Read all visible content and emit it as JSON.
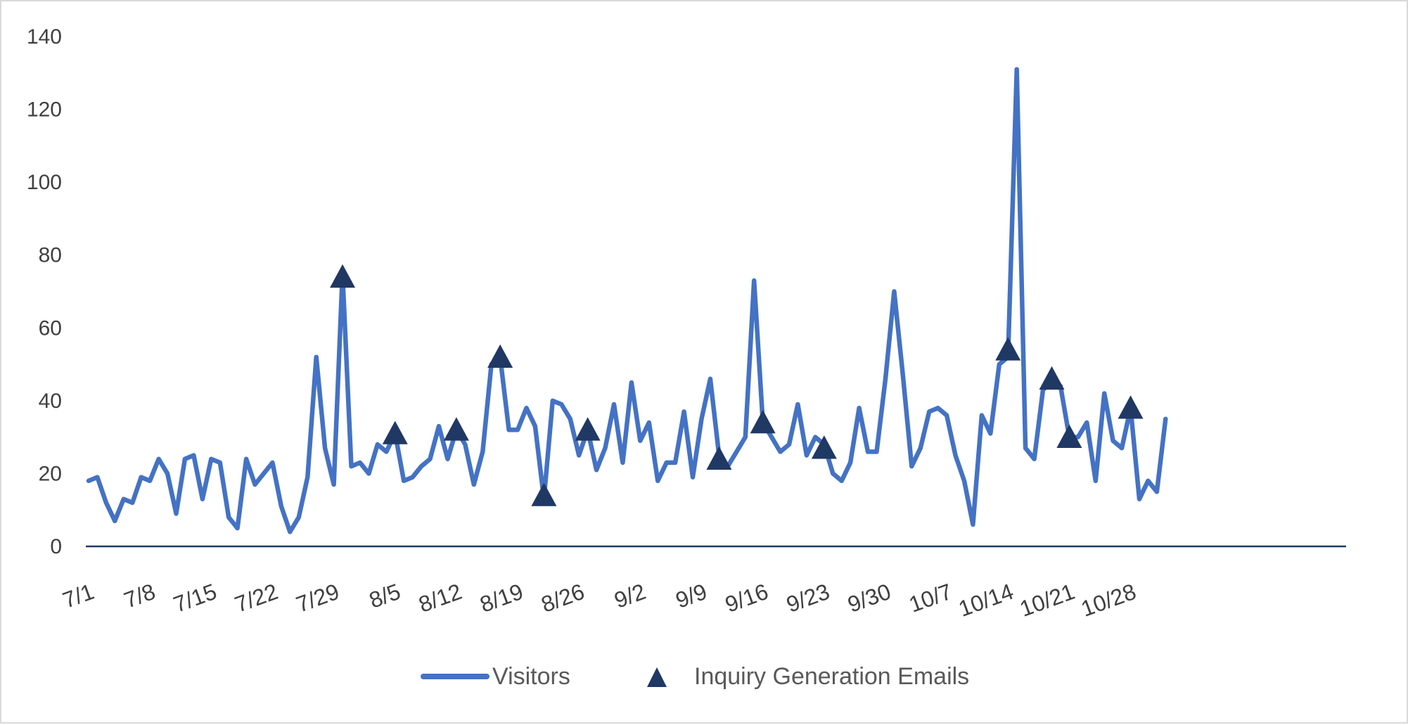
{
  "chart_data": {
    "type": "line",
    "x_tick_labels": [
      "7/1",
      "7/8",
      "7/15",
      "7/22",
      "7/29",
      "8/5",
      "8/12",
      "8/19",
      "8/26",
      "9/2",
      "9/9",
      "9/16",
      "9/23",
      "9/30",
      "10/7",
      "10/14",
      "10/21",
      "10/28"
    ],
    "y_tick_labels": [
      "0",
      "20",
      "40",
      "60",
      "80",
      "100",
      "120",
      "140"
    ],
    "ylim": [
      0,
      140
    ],
    "x_range_days": [
      0,
      124
    ],
    "series": [
      {
        "name": "Visitors",
        "kind": "line",
        "color": "#4472c4",
        "values": [
          18,
          19,
          12,
          7,
          13,
          12,
          19,
          18,
          24,
          20,
          9,
          24,
          25,
          13,
          24,
          23,
          8,
          5,
          24,
          17,
          20,
          23,
          11,
          4,
          8,
          19,
          52,
          27,
          17,
          75,
          22,
          23,
          20,
          28,
          26,
          31,
          18,
          19,
          22,
          24,
          33,
          24,
          32,
          28,
          17,
          26,
          50,
          52,
          32,
          32,
          38,
          33,
          13,
          40,
          39,
          35,
          25,
          32,
          21,
          27,
          39,
          23,
          45,
          29,
          34,
          18,
          23,
          23,
          37,
          19,
          35,
          46,
          25,
          22,
          26,
          30,
          73,
          34,
          30,
          26,
          28,
          39,
          25,
          30,
          28,
          20,
          18,
          23,
          38,
          26,
          26,
          46,
          70,
          47,
          22,
          27,
          37,
          38,
          36,
          25,
          18,
          6,
          36,
          31,
          50,
          52,
          131,
          27,
          24,
          43,
          45,
          44,
          30,
          30,
          34,
          18,
          42,
          29,
          27,
          38,
          13,
          18,
          15,
          35
        ]
      },
      {
        "name": "Inquiry Generation Emails",
        "kind": "marker",
        "color": "#203864",
        "points": [
          {
            "x": 29,
            "y": 74
          },
          {
            "x": 35,
            "y": 31
          },
          {
            "x": 42,
            "y": 32
          },
          {
            "x": 47,
            "y": 52
          },
          {
            "x": 52,
            "y": 14
          },
          {
            "x": 57,
            "y": 32
          },
          {
            "x": 72,
            "y": 24
          },
          {
            "x": 77,
            "y": 34
          },
          {
            "x": 84,
            "y": 27
          },
          {
            "x": 105,
            "y": 54
          },
          {
            "x": 110,
            "y": 46
          },
          {
            "x": 112,
            "y": 30
          },
          {
            "x": 119,
            "y": 38
          }
        ]
      }
    ],
    "legend_position": "bottom",
    "grid": false
  }
}
